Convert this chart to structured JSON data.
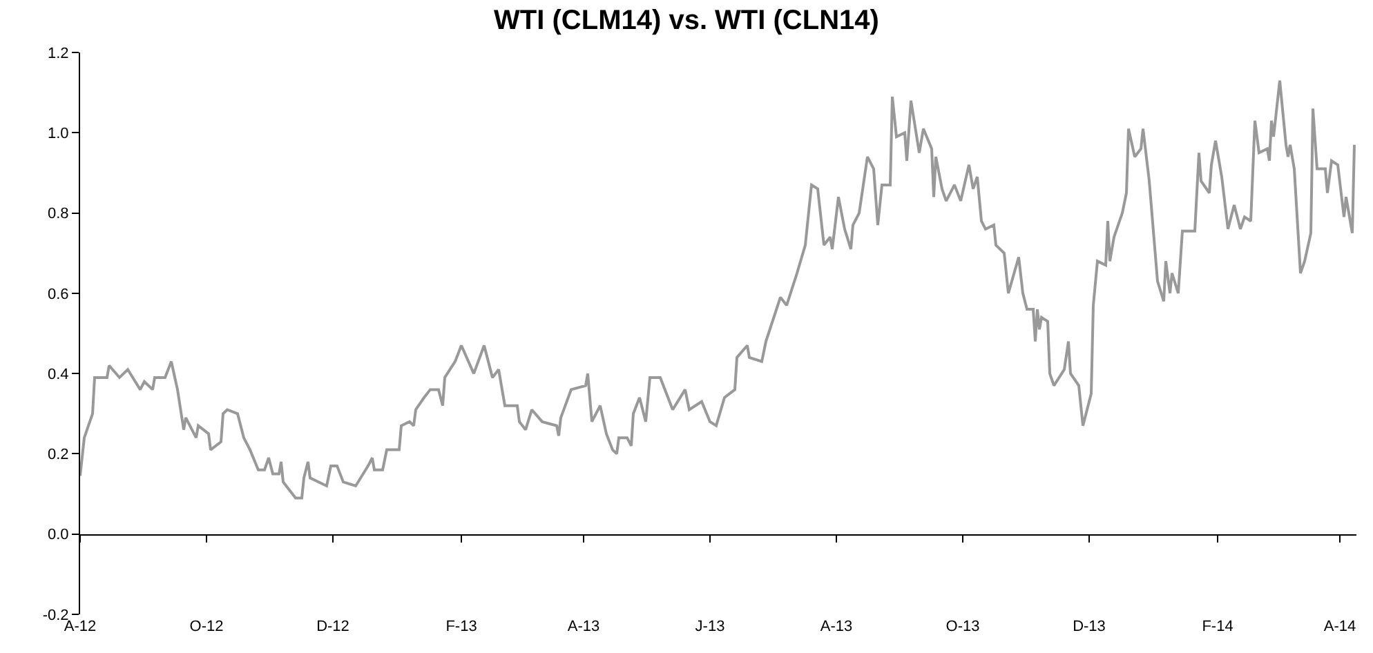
{
  "chart_data": {
    "type": "line",
    "title": "WTI (CLM14) vs. WTI (CLN14)",
    "x": [
      "2012-08-01",
      "2012-08-03",
      "2012-08-07",
      "2012-08-08",
      "2012-08-14",
      "2012-08-15",
      "2012-08-20",
      "2012-08-24",
      "2012-08-30",
      "2012-09-01",
      "2012-09-05",
      "2012-09-06",
      "2012-09-11",
      "2012-09-14",
      "2012-09-17",
      "2012-09-20",
      "2012-09-21",
      "2012-09-26",
      "2012-09-27",
      "2012-10-02",
      "2012-10-03",
      "2012-10-08",
      "2012-10-09",
      "2012-10-11",
      "2012-10-16",
      "2012-10-17",
      "2012-10-19",
      "2012-10-22",
      "2012-10-26",
      "2012-10-29",
      "2012-10-31",
      "2012-11-02",
      "2012-11-05",
      "2012-11-06",
      "2012-11-07",
      "2012-11-13",
      "2012-11-16",
      "2012-11-17",
      "2012-11-19",
      "2012-11-20",
      "2012-11-28",
      "2012-11-30",
      "2012-12-03",
      "2012-12-06",
      "2012-12-12",
      "2012-12-18",
      "2012-12-20",
      "2012-12-21",
      "2012-12-25",
      "2012-12-27",
      "2013-01-02",
      "2013-01-03",
      "2013-01-07",
      "2013-01-09",
      "2013-01-10",
      "2013-01-14",
      "2013-01-17",
      "2013-01-21",
      "2013-01-23",
      "2013-01-24",
      "2013-01-29",
      "2013-02-01",
      "2013-02-07",
      "2013-02-12",
      "2013-02-16",
      "2013-02-19",
      "2013-02-22",
      "2013-02-28",
      "2013-03-01",
      "2013-03-04",
      "2013-03-07",
      "2013-03-12",
      "2013-03-19",
      "2013-03-20",
      "2013-03-21",
      "2013-03-26",
      "2013-04-02",
      "2013-04-03",
      "2013-04-05",
      "2013-04-09",
      "2013-04-12",
      "2013-04-15",
      "2013-04-17",
      "2013-04-18",
      "2013-04-22",
      "2013-04-24",
      "2013-04-25",
      "2013-04-28",
      "2013-05-01",
      "2013-05-03",
      "2013-05-08",
      "2013-05-14",
      "2013-05-20",
      "2013-05-22",
      "2013-05-28",
      "2013-06-01",
      "2013-06-04",
      "2013-06-08",
      "2013-06-13",
      "2013-06-14",
      "2013-06-19",
      "2013-06-20",
      "2013-06-26",
      "2013-06-28",
      "2013-07-05",
      "2013-07-08",
      "2013-07-13",
      "2013-07-17",
      "2013-07-20",
      "2013-07-23",
      "2013-07-26",
      "2013-07-29",
      "2013-07-30",
      "2013-08-02",
      "2013-08-05",
      "2013-08-08",
      "2013-08-09",
      "2013-08-12",
      "2013-08-16",
      "2013-08-19",
      "2013-08-21",
      "2013-08-23",
      "2013-08-27",
      "2013-08-28",
      "2013-08-30",
      "2013-09-03",
      "2013-09-04",
      "2013-09-06",
      "2013-09-10",
      "2013-09-12",
      "2013-09-16",
      "2013-09-17",
      "2013-09-18",
      "2013-09-21",
      "2013-09-23",
      "2013-09-27",
      "2013-09-30",
      "2013-10-04",
      "2013-10-06",
      "2013-10-08",
      "2013-10-10",
      "2013-10-12",
      "2013-10-16",
      "2013-10-17",
      "2013-10-21",
      "2013-10-23",
      "2013-10-28",
      "2013-10-30",
      "2013-11-01",
      "2013-11-04",
      "2013-11-05",
      "2013-11-06",
      "2013-11-07",
      "2013-11-08",
      "2013-11-11",
      "2013-11-12",
      "2013-11-14",
      "2013-11-19",
      "2013-11-21",
      "2013-11-22",
      "2013-11-26",
      "2013-11-28",
      "2013-12-02",
      "2013-12-03",
      "2013-12-05",
      "2013-12-09",
      "2013-12-10",
      "2013-12-11",
      "2013-12-13",
      "2013-12-17",
      "2013-12-19",
      "2013-12-20",
      "2013-12-23",
      "2013-12-26",
      "2013-12-27",
      "2013-12-30",
      "2014-01-03",
      "2014-01-06",
      "2014-01-07",
      "2014-01-09",
      "2014-01-10",
      "2014-01-13",
      "2014-01-15",
      "2014-01-17",
      "2014-01-21",
      "2014-01-23",
      "2014-01-24",
      "2014-01-28",
      "2014-01-29",
      "2014-01-31",
      "2014-02-03",
      "2014-02-06",
      "2014-02-09",
      "2014-02-12",
      "2014-02-14",
      "2014-02-17",
      "2014-02-19",
      "2014-02-21",
      "2014-02-25",
      "2014-02-26",
      "2014-02-27",
      "2014-02-28",
      "2014-03-03",
      "2014-03-06",
      "2014-03-07",
      "2014-03-08",
      "2014-03-10",
      "2014-03-13",
      "2014-03-15",
      "2014-03-18",
      "2014-03-19",
      "2014-03-21",
      "2014-03-25",
      "2014-03-26",
      "2014-03-28",
      "2014-03-31",
      "2014-04-03",
      "2014-04-04",
      "2014-04-07",
      "2014-04-08"
    ],
    "series": [
      {
        "color": "#999999",
        "values": [
          0.145,
          0.24,
          0.3,
          0.39,
          0.39,
          0.42,
          0.39,
          0.41,
          0.36,
          0.38,
          0.36,
          0.39,
          0.39,
          0.43,
          0.36,
          0.26,
          0.29,
          0.24,
          0.27,
          0.25,
          0.21,
          0.23,
          0.3,
          0.31,
          0.3,
          0.28,
          0.24,
          0.21,
          0.16,
          0.16,
          0.19,
          0.15,
          0.15,
          0.18,
          0.13,
          0.09,
          0.09,
          0.14,
          0.18,
          0.14,
          0.12,
          0.17,
          0.17,
          0.13,
          0.12,
          0.17,
          0.19,
          0.16,
          0.16,
          0.21,
          0.21,
          0.27,
          0.28,
          0.27,
          0.31,
          0.34,
          0.36,
          0.36,
          0.32,
          0.39,
          0.43,
          0.47,
          0.4,
          0.47,
          0.39,
          0.41,
          0.32,
          0.32,
          0.28,
          0.26,
          0.31,
          0.28,
          0.27,
          0.245,
          0.29,
          0.36,
          0.37,
          0.4,
          0.28,
          0.32,
          0.25,
          0.21,
          0.2,
          0.24,
          0.24,
          0.22,
          0.3,
          0.34,
          0.28,
          0.39,
          0.39,
          0.31,
          0.36,
          0.31,
          0.33,
          0.28,
          0.27,
          0.34,
          0.36,
          0.44,
          0.47,
          0.44,
          0.43,
          0.48,
          0.59,
          0.57,
          0.65,
          0.72,
          0.87,
          0.86,
          0.72,
          0.74,
          0.71,
          0.84,
          0.76,
          0.71,
          0.77,
          0.8,
          0.94,
          0.91,
          0.77,
          0.87,
          0.87,
          1.09,
          0.99,
          1.0,
          0.93,
          1.08,
          0.95,
          1.01,
          0.96,
          0.84,
          0.94,
          0.86,
          0.83,
          0.87,
          0.83,
          0.92,
          0.86,
          0.89,
          0.78,
          0.76,
          0.77,
          0.72,
          0.7,
          0.6,
          0.69,
          0.6,
          0.56,
          0.56,
          0.48,
          0.56,
          0.51,
          0.54,
          0.53,
          0.4,
          0.37,
          0.41,
          0.48,
          0.4,
          0.37,
          0.27,
          0.35,
          0.57,
          0.68,
          0.67,
          0.78,
          0.68,
          0.74,
          0.8,
          0.85,
          1.01,
          0.94,
          0.96,
          1.01,
          0.88,
          0.63,
          0.58,
          0.68,
          0.6,
          0.65,
          0.6,
          0.755,
          0.755,
          0.755,
          0.95,
          0.88,
          0.85,
          0.92,
          0.98,
          0.89,
          0.76,
          0.82,
          0.76,
          0.79,
          0.78,
          1.03,
          0.95,
          0.96,
          0.93,
          1.03,
          0.99,
          1.13,
          0.97,
          0.94,
          0.97,
          0.91,
          0.65,
          0.68,
          0.75,
          1.06,
          0.91,
          0.91,
          0.85,
          0.93,
          0.92,
          0.79,
          0.84,
          0.75,
          0.97
        ]
      }
    ],
    "xlim": [
      "2012-08-01",
      "2014-04-09"
    ],
    "xticks": [
      {
        "value": "2012-08-01",
        "label": "A-12"
      },
      {
        "value": "2012-10-01",
        "label": "O-12"
      },
      {
        "value": "2012-12-01",
        "label": "D-12"
      },
      {
        "value": "2013-02-01",
        "label": "F-13"
      },
      {
        "value": "2013-04-01",
        "label": "A-13"
      },
      {
        "value": "2013-06-01",
        "label": "J-13"
      },
      {
        "value": "2013-08-01",
        "label": "A-13"
      },
      {
        "value": "2013-10-01",
        "label": "O-13"
      },
      {
        "value": "2013-12-01",
        "label": "D-13"
      },
      {
        "value": "2014-02-01",
        "label": "F-14"
      },
      {
        "value": "2014-04-01",
        "label": "A-14"
      }
    ],
    "ylim": [
      -0.2,
      1.2
    ],
    "yticks": [
      {
        "value": -0.2,
        "label": "-0.2"
      },
      {
        "value": 0,
        "label": "0.0"
      },
      {
        "value": 0.2,
        "label": "0.2"
      },
      {
        "value": 0.4,
        "label": "0.4"
      },
      {
        "value": 0.6,
        "label": "0.6"
      },
      {
        "value": 0.8,
        "label": "0.8"
      },
      {
        "value": 1.0,
        "label": "1.0"
      },
      {
        "value": 1.2,
        "label": "1.2"
      }
    ],
    "marker": "none",
    "line_style": "solid"
  }
}
